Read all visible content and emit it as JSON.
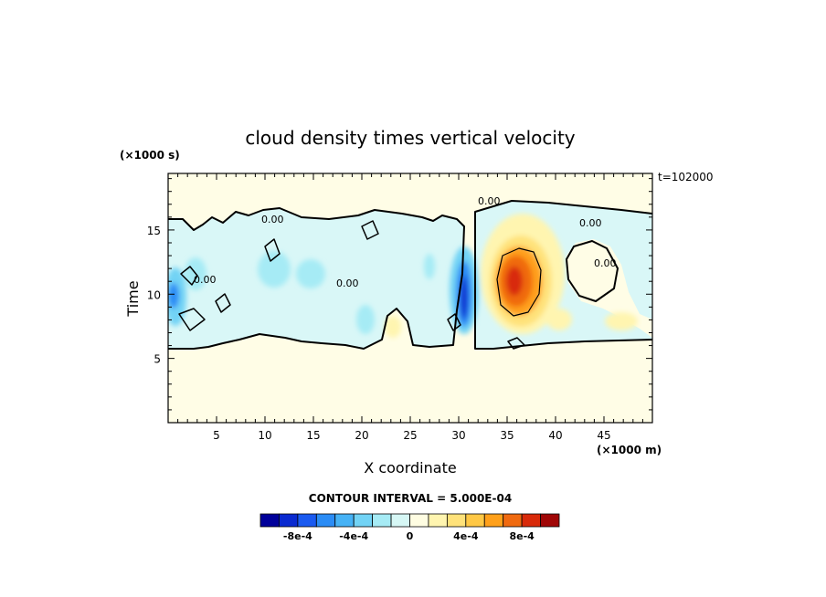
{
  "chart_data": {
    "type": "heatmap",
    "title": "cloud density times vertical velocity",
    "xlabel": "X coordinate",
    "ylabel": "Time",
    "x_units": "(×1000 m)",
    "y_units": "(×1000 s)",
    "annotation": "t=102000",
    "xlim": [
      0,
      50
    ],
    "ylim": [
      0,
      19.4
    ],
    "x_ticks": [
      5,
      10,
      15,
      20,
      25,
      30,
      35,
      40,
      45
    ],
    "y_ticks": [
      5,
      10,
      15
    ],
    "contour_interval_text": "CONTOUR INTERVAL = 5.000E-04",
    "contour_labels": [
      "0.00",
      "0.00",
      "0.00",
      "0.00",
      "0.00",
      "0.00"
    ],
    "colorbar": {
      "levels": 16,
      "tick_labels": [
        "-8e-4",
        "-4e-4",
        "0",
        "4e-4",
        "8e-4"
      ],
      "colors": [
        "#00009a",
        "#0a2ad0",
        "#1a5af0",
        "#2b8cf5",
        "#46b2f5",
        "#72d3f5",
        "#a6ebf5",
        "#d6f7f5",
        "#fffde2",
        "#fff5b0",
        "#ffe27a",
        "#ffc845",
        "#ffa01a",
        "#f06a10",
        "#d82a0a",
        "#a00606"
      ]
    },
    "features": [
      {
        "kind": "region",
        "sign": "negative",
        "x": [
          0,
          24
        ],
        "y": [
          6.3,
          17
        ],
        "peak": "-6e-4 near x=1, t=10"
      },
      {
        "kind": "region",
        "sign": "negative",
        "x": [
          28,
          31.5
        ],
        "y": [
          7,
          14
        ],
        "peak": "-9e-4 near x=30, t=9.5"
      },
      {
        "kind": "region",
        "sign": "positive",
        "x": [
          33,
          40
        ],
        "y": [
          6.5,
          17
        ],
        "peak": "1.1e-3 near x=35.5, t=11"
      },
      {
        "kind": "region",
        "sign": "positive",
        "x": [
          40,
          50
        ],
        "y": [
          6.5,
          9
        ],
        "peak": "3e-4"
      }
    ]
  }
}
